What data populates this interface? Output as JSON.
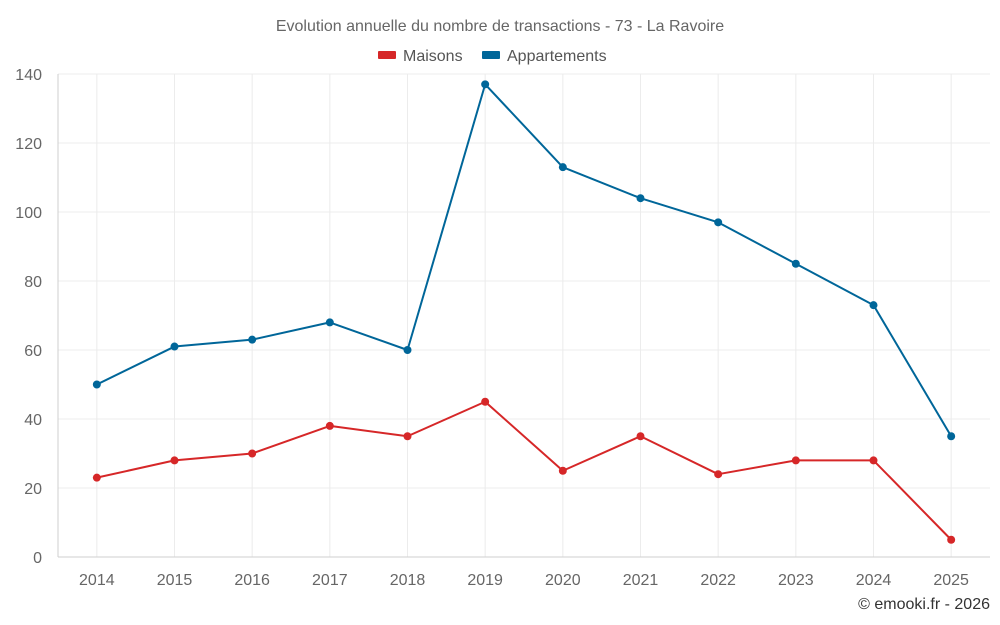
{
  "chart_data": {
    "type": "line",
    "title": "Evolution annuelle du nombre de transactions - 73 - La Ravoire",
    "xlabel": "",
    "ylabel": "",
    "categories": [
      "2014",
      "2015",
      "2016",
      "2017",
      "2018",
      "2019",
      "2020",
      "2021",
      "2022",
      "2023",
      "2024",
      "2025"
    ],
    "ylim": [
      0,
      140
    ],
    "yticks": [
      0,
      20,
      40,
      60,
      80,
      100,
      120,
      140
    ],
    "grid": true,
    "legend_position": "top-center",
    "series": [
      {
        "name": "Maisons",
        "color": "#d62728",
        "values": [
          23,
          28,
          30,
          38,
          35,
          45,
          25,
          35,
          24,
          28,
          28,
          5
        ]
      },
      {
        "name": "Appartements",
        "color": "#006699",
        "values": [
          50,
          61,
          63,
          68,
          60,
          137,
          113,
          104,
          97,
          85,
          73,
          35
        ]
      }
    ],
    "credit": "© emooki.fr - 2026"
  }
}
